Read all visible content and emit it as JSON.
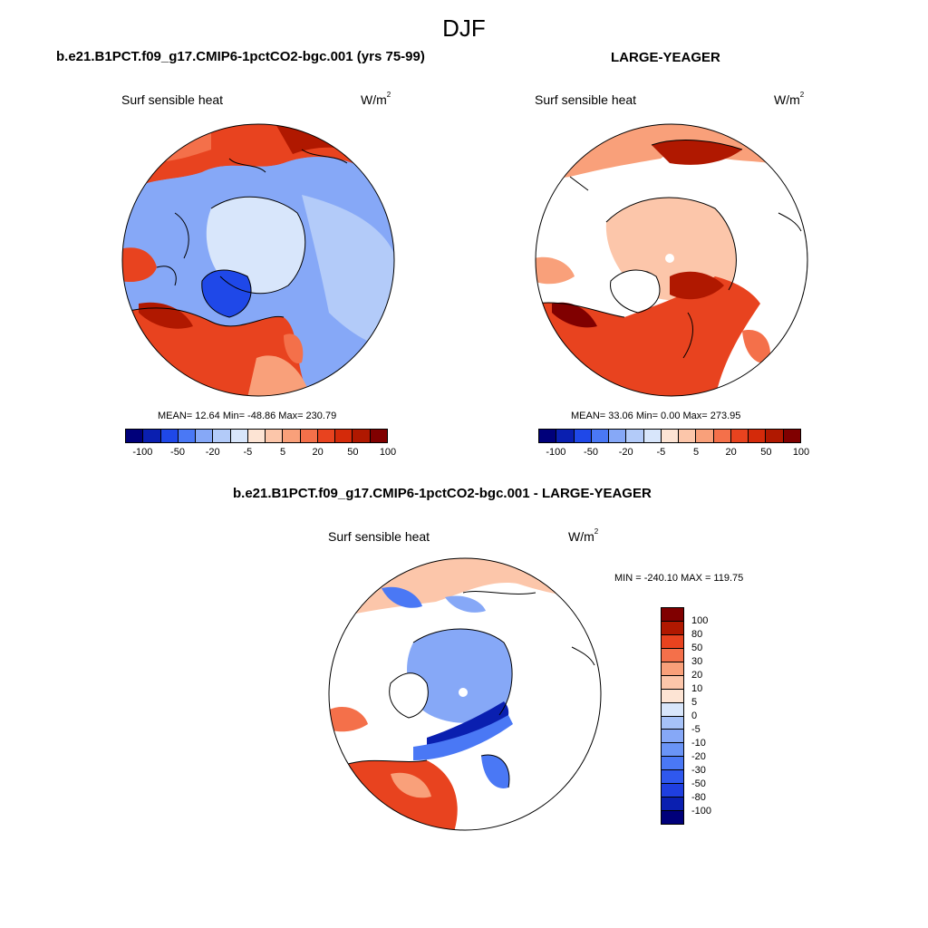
{
  "main_title": "DJF",
  "colors": {
    "scale_15": [
      "#00007a",
      "#0a1fb0",
      "#1f48e8",
      "#4a78f5",
      "#86a8f7",
      "#b3cbf9",
      "#d8e6fb",
      "#fde4d4",
      "#fcc6aa",
      "#f9a07a",
      "#f4704a",
      "#e8431f",
      "#d42a0a",
      "#b01800",
      "#800000"
    ],
    "scale_16": [
      "#00007a",
      "#0a1fb0",
      "#1f3fe0",
      "#2f58ee",
      "#4a78f5",
      "#6a94f6",
      "#86a8f7",
      "#a6c2f8",
      "#d8e6fb",
      "#fde4d4",
      "#fcc6aa",
      "#f9a07a",
      "#f4704a",
      "#e8431f",
      "#b01800",
      "#800000"
    ],
    "land": "#ffffff",
    "ocean_blue": "#b9cdf4",
    "ocean_red": "#e8431f"
  },
  "panels": [
    {
      "title": "b.e21.B1PCT.f09_g17.CMIP6-1pctCO2-bgc.001 (yrs 75-99)",
      "left_label": "Surf sensible heat",
      "units": "W/m",
      "units_sup": "2",
      "stats": "MEAN=  12.64  Min= -48.86  Max= 230.79",
      "colorbar_ticks": [
        "-100",
        "-50",
        "-20",
        "-5",
        "5",
        "20",
        "50",
        "100"
      ]
    },
    {
      "title": "LARGE-YEAGER",
      "left_label": "Surf sensible heat",
      "units": "W/m",
      "units_sup": "2",
      "stats": "MEAN=  33.06  Min=   0.00  Max= 273.95",
      "colorbar_ticks": [
        "-100",
        "-50",
        "-20",
        "-5",
        "5",
        "20",
        "50",
        "100"
      ]
    },
    {
      "title": "b.e21.B1PCT.f09_g17.CMIP6-1pctCO2-bgc.001 - LARGE-YEAGER",
      "left_label": "Surf sensible heat",
      "units": "W/m",
      "units_sup": "2",
      "stats": "MIN = -240.10 MAX = 119.75",
      "colorbar_ticks": [
        "100",
        "80",
        "50",
        "30",
        "20",
        "10",
        "5",
        "0",
        "-5",
        "-10",
        "-20",
        "-30",
        "-50",
        "-80",
        "-100"
      ]
    }
  ],
  "chart_data": [
    {
      "type": "heatmap",
      "title": "b.e21.B1PCT.f09_g17.CMIP6-1pctCO2-bgc.001 (yrs 75-99)",
      "variable": "Surf sensible heat",
      "units": "W/m2",
      "projection": "north polar stereographic",
      "mean": 12.64,
      "min": -48.86,
      "max": 230.79,
      "levels": [
        -100,
        -80,
        -50,
        -30,
        -20,
        -10,
        -5,
        0,
        5,
        10,
        20,
        30,
        50,
        80,
        100
      ]
    },
    {
      "type": "heatmap",
      "title": "LARGE-YEAGER",
      "variable": "Surf sensible heat",
      "units": "W/m2",
      "projection": "north polar stereographic",
      "mean": 33.06,
      "min": 0.0,
      "max": 273.95,
      "levels": [
        -100,
        -80,
        -50,
        -30,
        -20,
        -10,
        -5,
        0,
        5,
        10,
        20,
        30,
        50,
        80,
        100
      ]
    },
    {
      "type": "heatmap",
      "title": "b.e21.B1PCT.f09_g17.CMIP6-1pctCO2-bgc.001 - LARGE-YEAGER",
      "variable": "Surf sensible heat",
      "units": "W/m2",
      "projection": "north polar stereographic",
      "min": -240.1,
      "max": 119.75,
      "levels": [
        -100,
        -80,
        -50,
        -30,
        -20,
        -10,
        -5,
        0,
        5,
        10,
        20,
        30,
        50,
        80,
        100
      ]
    }
  ]
}
